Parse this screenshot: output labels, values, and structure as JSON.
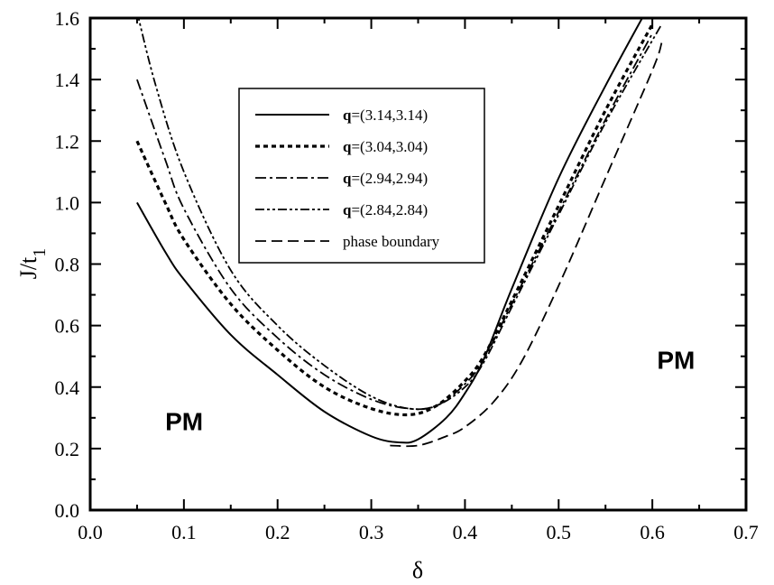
{
  "chart_data": {
    "type": "line",
    "xlabel": "δ",
    "ylabel": "J/t",
    "ylabel_subscript": "1",
    "xlim": [
      0.0,
      0.7
    ],
    "ylim": [
      0.0,
      1.6
    ],
    "x_ticks": [
      "0.0",
      "0.1",
      "0.2",
      "0.3",
      "0.4",
      "0.5",
      "0.6",
      "0.7"
    ],
    "y_ticks": [
      "0.0",
      "0.2",
      "0.4",
      "0.6",
      "0.8",
      "1.0",
      "1.2",
      "1.4",
      "1.6"
    ],
    "grid": false,
    "legend_position": "top-center",
    "annotations": [
      {
        "text": "PM",
        "x": 0.08,
        "y": 0.26
      },
      {
        "text": "PM",
        "x": 0.605,
        "y": 0.46
      }
    ],
    "series": [
      {
        "name": "(3.14,3.14)",
        "name_prefix": "q",
        "name_separator": "=",
        "style": "solid",
        "x": [
          0.05,
          0.08,
          0.1,
          0.15,
          0.2,
          0.25,
          0.3,
          0.33,
          0.35,
          0.38,
          0.4,
          0.42,
          0.45,
          0.5,
          0.55,
          0.6
        ],
        "y": [
          1.0,
          0.84,
          0.75,
          0.57,
          0.44,
          0.32,
          0.24,
          0.22,
          0.23,
          0.3,
          0.38,
          0.49,
          0.72,
          1.08,
          1.38,
          1.66
        ]
      },
      {
        "name": "(3.04,3.04)",
        "name_prefix": "q",
        "name_separator": "=",
        "style": "dotted",
        "x": [
          0.05,
          0.08,
          0.1,
          0.15,
          0.2,
          0.25,
          0.3,
          0.34,
          0.37,
          0.4,
          0.42,
          0.45,
          0.5,
          0.55,
          0.6
        ],
        "y": [
          1.2,
          1.0,
          0.88,
          0.67,
          0.52,
          0.4,
          0.33,
          0.31,
          0.34,
          0.42,
          0.5,
          0.68,
          0.99,
          1.3,
          1.58
        ]
      },
      {
        "name": "(2.94,2.94)",
        "name_prefix": "q",
        "name_separator": "=",
        "style": "dash-dot",
        "x": [
          0.05,
          0.08,
          0.1,
          0.15,
          0.2,
          0.25,
          0.3,
          0.34,
          0.37,
          0.4,
          0.42,
          0.45,
          0.5,
          0.55,
          0.6
        ],
        "y": [
          1.4,
          1.14,
          0.98,
          0.72,
          0.56,
          0.44,
          0.36,
          0.33,
          0.34,
          0.41,
          0.49,
          0.67,
          0.97,
          1.27,
          1.55
        ]
      },
      {
        "name": "(2.84,2.84)",
        "name_prefix": "q",
        "name_separator": "=",
        "style": "dash-dot-dot",
        "x": [
          0.05,
          0.07,
          0.1,
          0.15,
          0.2,
          0.25,
          0.3,
          0.34,
          0.37,
          0.4,
          0.42,
          0.45,
          0.5,
          0.55,
          0.61
        ],
        "y": [
          1.62,
          1.38,
          1.1,
          0.78,
          0.6,
          0.47,
          0.37,
          0.33,
          0.34,
          0.4,
          0.48,
          0.66,
          0.96,
          1.26,
          1.58
        ]
      },
      {
        "name": "phase boundary",
        "style": "dashed",
        "x": [
          0.32,
          0.35,
          0.38,
          0.4,
          0.43,
          0.46,
          0.5,
          0.55,
          0.6,
          0.61
        ],
        "y": [
          0.21,
          0.21,
          0.24,
          0.27,
          0.35,
          0.48,
          0.73,
          1.08,
          1.43,
          1.52
        ]
      }
    ]
  }
}
